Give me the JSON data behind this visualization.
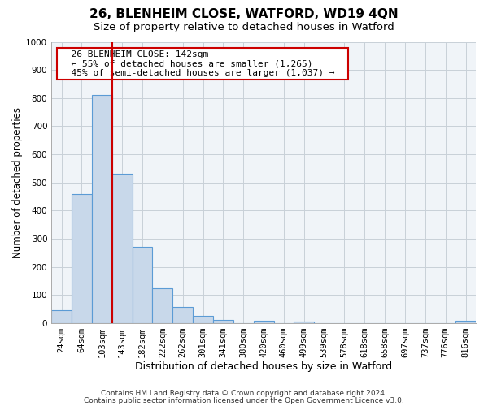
{
  "title": "26, BLENHEIM CLOSE, WATFORD, WD19 4QN",
  "subtitle": "Size of property relative to detached houses in Watford",
  "xlabel": "Distribution of detached houses by size in Watford",
  "ylabel": "Number of detached properties",
  "bar_labels": [
    "24sqm",
    "64sqm",
    "103sqm",
    "143sqm",
    "182sqm",
    "222sqm",
    "262sqm",
    "301sqm",
    "341sqm",
    "380sqm",
    "420sqm",
    "460sqm",
    "499sqm",
    "539sqm",
    "578sqm",
    "618sqm",
    "658sqm",
    "697sqm",
    "737sqm",
    "776sqm",
    "816sqm"
  ],
  "bar_values": [
    46,
    460,
    810,
    530,
    270,
    125,
    57,
    25,
    12,
    0,
    8,
    0,
    5,
    0,
    0,
    0,
    0,
    0,
    0,
    0,
    10
  ],
  "bar_color": "#c8d8ea",
  "bar_edge_color": "#5b9bd5",
  "vline_color": "#cc0000",
  "ylim": [
    0,
    1000
  ],
  "yticks": [
    0,
    100,
    200,
    300,
    400,
    500,
    600,
    700,
    800,
    900,
    1000
  ],
  "annotation_title": "26 BLENHEIM CLOSE: 142sqm",
  "annotation_line1": "← 55% of detached houses are smaller (1,265)",
  "annotation_line2": "45% of semi-detached houses are larger (1,037) →",
  "annotation_box_color": "#ffffff",
  "annotation_box_edge": "#cc0000",
  "footer1": "Contains HM Land Registry data © Crown copyright and database right 2024.",
  "footer2": "Contains public sector information licensed under the Open Government Licence v3.0.",
  "title_fontsize": 11,
  "subtitle_fontsize": 9.5,
  "xlabel_fontsize": 9,
  "ylabel_fontsize": 8.5,
  "tick_fontsize": 7.5,
  "annotation_fontsize": 8,
  "footer_fontsize": 6.5,
  "grid_color": "#c8d0d8",
  "bg_color": "#f0f4f8"
}
